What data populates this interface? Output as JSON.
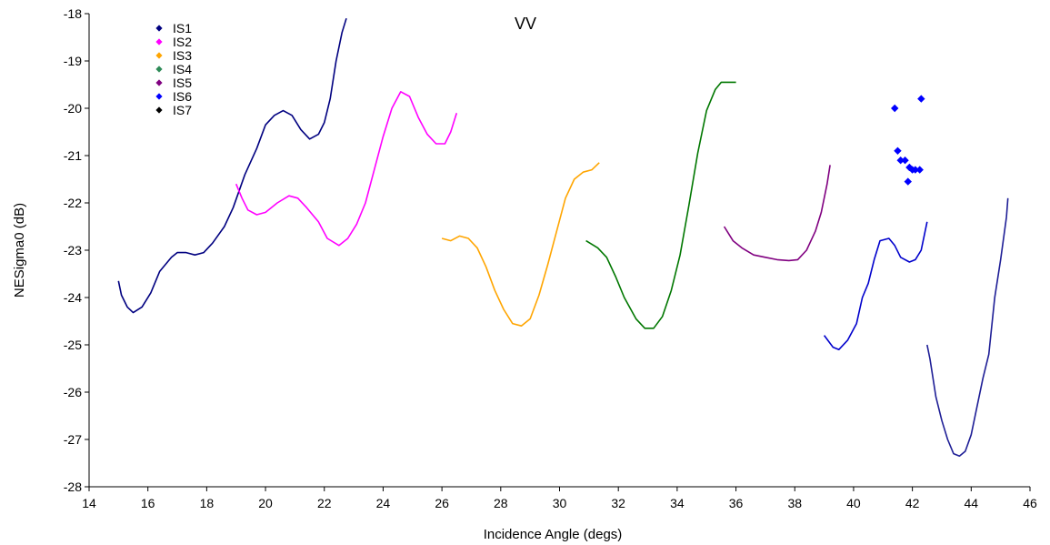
{
  "chart_data": {
    "type": "line",
    "title": "VV",
    "xlabel": "Incidence Angle (degs)",
    "ylabel": "NESigma0 (dB)",
    "xlim": [
      14,
      46
    ],
    "ylim": [
      -28,
      -18
    ],
    "xticks": [
      "14",
      "16",
      "18",
      "20",
      "22",
      "24",
      "26",
      "28",
      "30",
      "32",
      "34",
      "36",
      "38",
      "40",
      "42",
      "44",
      "46"
    ],
    "yticks": [
      "-18",
      "-19",
      "-20",
      "-21",
      "-22",
      "-23",
      "-24",
      "-25",
      "-26",
      "-27",
      "-28"
    ],
    "grid": false,
    "legend_position": "top-left",
    "legend": [
      {
        "label": "IS1",
        "color": "#000080"
      },
      {
        "label": "IS2",
        "color": "#FF00FF"
      },
      {
        "label": "IS3",
        "color": "#FFA500"
      },
      {
        "label": "IS4",
        "color": "#2E8B57"
      },
      {
        "label": "IS5",
        "color": "#800080"
      },
      {
        "label": "IS6",
        "color": "#0000FF"
      },
      {
        "label": "IS7",
        "color": "#000000"
      }
    ],
    "series": [
      {
        "color": "#000080",
        "points": [
          [
            15.0,
            -23.65
          ],
          [
            15.1,
            -23.95
          ],
          [
            15.3,
            -24.2
          ],
          [
            15.5,
            -24.32
          ],
          [
            15.8,
            -24.2
          ],
          [
            16.1,
            -23.9
          ],
          [
            16.4,
            -23.45
          ],
          [
            16.8,
            -23.15
          ],
          [
            17.0,
            -23.05
          ],
          [
            17.3,
            -23.05
          ],
          [
            17.6,
            -23.1
          ],
          [
            17.9,
            -23.05
          ],
          [
            18.2,
            -22.85
          ],
          [
            18.6,
            -22.5
          ],
          [
            18.9,
            -22.1
          ],
          [
            19.3,
            -21.4
          ],
          [
            19.7,
            -20.85
          ],
          [
            20.0,
            -20.35
          ],
          [
            20.3,
            -20.15
          ],
          [
            20.6,
            -20.05
          ],
          [
            20.9,
            -20.15
          ],
          [
            21.2,
            -20.45
          ],
          [
            21.5,
            -20.65
          ],
          [
            21.8,
            -20.55
          ],
          [
            22.0,
            -20.3
          ],
          [
            22.2,
            -19.8
          ],
          [
            22.4,
            -19.0
          ],
          [
            22.6,
            -18.4
          ],
          [
            22.75,
            -18.1
          ]
        ]
      },
      {
        "color": "#FF00FF",
        "points": [
          [
            19.0,
            -21.6
          ],
          [
            19.2,
            -21.9
          ],
          [
            19.4,
            -22.15
          ],
          [
            19.7,
            -22.25
          ],
          [
            20.0,
            -22.2
          ],
          [
            20.4,
            -22.0
          ],
          [
            20.8,
            -21.85
          ],
          [
            21.1,
            -21.9
          ],
          [
            21.4,
            -22.1
          ],
          [
            21.8,
            -22.4
          ],
          [
            22.1,
            -22.75
          ],
          [
            22.5,
            -22.9
          ],
          [
            22.8,
            -22.75
          ],
          [
            23.1,
            -22.45
          ],
          [
            23.4,
            -22.0
          ],
          [
            23.7,
            -21.3
          ],
          [
            24.0,
            -20.6
          ],
          [
            24.3,
            -20.0
          ],
          [
            24.6,
            -19.65
          ],
          [
            24.9,
            -19.75
          ],
          [
            25.2,
            -20.2
          ],
          [
            25.5,
            -20.55
          ],
          [
            25.8,
            -20.75
          ],
          [
            26.1,
            -20.75
          ],
          [
            26.3,
            -20.5
          ],
          [
            26.5,
            -20.1
          ]
        ]
      },
      {
        "color": "#FFA500",
        "points": [
          [
            26.0,
            -22.75
          ],
          [
            26.3,
            -22.8
          ],
          [
            26.6,
            -22.7
          ],
          [
            26.9,
            -22.75
          ],
          [
            27.2,
            -22.95
          ],
          [
            27.5,
            -23.35
          ],
          [
            27.8,
            -23.85
          ],
          [
            28.1,
            -24.25
          ],
          [
            28.4,
            -24.55
          ],
          [
            28.7,
            -24.6
          ],
          [
            29.0,
            -24.45
          ],
          [
            29.3,
            -23.95
          ],
          [
            29.6,
            -23.3
          ],
          [
            29.9,
            -22.6
          ],
          [
            30.2,
            -21.9
          ],
          [
            30.5,
            -21.5
          ],
          [
            30.8,
            -21.35
          ],
          [
            31.1,
            -21.3
          ],
          [
            31.35,
            -21.15
          ]
        ]
      },
      {
        "color": "#007700",
        "points": [
          [
            30.9,
            -22.8
          ],
          [
            31.3,
            -22.95
          ],
          [
            31.6,
            -23.15
          ],
          [
            31.9,
            -23.55
          ],
          [
            32.2,
            -24.0
          ],
          [
            32.6,
            -24.45
          ],
          [
            32.9,
            -24.65
          ],
          [
            33.2,
            -24.65
          ],
          [
            33.5,
            -24.4
          ],
          [
            33.8,
            -23.85
          ],
          [
            34.1,
            -23.1
          ],
          [
            34.4,
            -22.05
          ],
          [
            34.7,
            -20.95
          ],
          [
            35.0,
            -20.05
          ],
          [
            35.3,
            -19.6
          ],
          [
            35.5,
            -19.45
          ],
          [
            36.0,
            -19.45
          ]
        ]
      },
      {
        "color": "#800080",
        "points": [
          [
            35.6,
            -22.5
          ],
          [
            35.9,
            -22.8
          ],
          [
            36.2,
            -22.95
          ],
          [
            36.6,
            -23.1
          ],
          [
            37.0,
            -23.15
          ],
          [
            37.4,
            -23.2
          ],
          [
            37.8,
            -23.22
          ],
          [
            38.1,
            -23.2
          ],
          [
            38.4,
            -23.0
          ],
          [
            38.7,
            -22.6
          ],
          [
            38.9,
            -22.2
          ],
          [
            39.1,
            -21.6
          ],
          [
            39.2,
            -21.2
          ]
        ]
      },
      {
        "color": "#0000CC",
        "points": [
          [
            39.0,
            -24.8
          ],
          [
            39.3,
            -25.05
          ],
          [
            39.5,
            -25.1
          ],
          [
            39.8,
            -24.9
          ],
          [
            40.1,
            -24.55
          ],
          [
            40.3,
            -24.0
          ],
          [
            40.5,
            -23.7
          ],
          [
            40.7,
            -23.2
          ],
          [
            40.9,
            -22.8
          ],
          [
            41.2,
            -22.75
          ],
          [
            41.4,
            -22.9
          ],
          [
            41.6,
            -23.15
          ],
          [
            41.9,
            -23.25
          ],
          [
            42.1,
            -23.2
          ],
          [
            42.3,
            -23.0
          ],
          [
            42.5,
            -22.4
          ]
        ]
      },
      {
        "color": "#1E1E96",
        "points": [
          [
            42.5,
            -25.0
          ],
          [
            42.6,
            -25.3
          ],
          [
            42.8,
            -26.1
          ],
          [
            43.0,
            -26.6
          ],
          [
            43.2,
            -27.0
          ],
          [
            43.4,
            -27.3
          ],
          [
            43.6,
            -27.35
          ],
          [
            43.8,
            -27.25
          ],
          [
            44.0,
            -26.9
          ],
          [
            44.2,
            -26.3
          ],
          [
            44.4,
            -25.7
          ],
          [
            44.6,
            -25.2
          ],
          [
            44.8,
            -24.0
          ],
          [
            45.0,
            -23.2
          ],
          [
            45.2,
            -22.3
          ],
          [
            45.25,
            -21.9
          ]
        ]
      }
    ],
    "scatter": {
      "color": "#0000FF",
      "points": [
        [
          41.4,
          -20.0
        ],
        [
          42.3,
          -19.8
        ],
        [
          41.5,
          -20.9
        ],
        [
          41.6,
          -21.1
        ],
        [
          41.75,
          -21.1
        ],
        [
          41.9,
          -21.25
        ],
        [
          42.0,
          -21.3
        ],
        [
          42.1,
          -21.3
        ],
        [
          42.25,
          -21.3
        ],
        [
          41.85,
          -21.55
        ]
      ]
    }
  }
}
